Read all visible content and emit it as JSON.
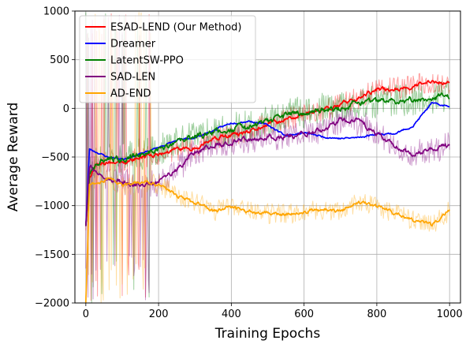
{
  "chart_data": {
    "type": "line",
    "title": "",
    "xlabel": "Training Epochs",
    "ylabel": "Average Reward",
    "xlim": [
      -30,
      1030
    ],
    "ylim": [
      -2000,
      1000
    ],
    "xticks": [
      0,
      200,
      400,
      600,
      800,
      1000
    ],
    "yticks": [
      -2000,
      -1500,
      -1000,
      -500,
      0,
      500,
      1000
    ],
    "xtick_labels": [
      "0",
      "200",
      "400",
      "600",
      "800",
      "1000"
    ],
    "ytick_labels": [
      "−2000",
      "−1500",
      "−1000",
      "−500",
      "0",
      "500",
      "1000"
    ],
    "grid": true,
    "legend_position": "top-left",
    "series": [
      {
        "name": "ESAD-LEND (Our Method)",
        "color": "#ff0000",
        "smooth_until": 1000,
        "raw_until": 1000,
        "x": [
          0,
          10,
          30,
          60,
          100,
          150,
          200,
          250,
          300,
          350,
          400,
          450,
          500,
          550,
          600,
          650,
          700,
          750,
          800,
          850,
          900,
          950,
          1000
        ],
        "values": [
          -1200,
          -700,
          -550,
          -560,
          -560,
          -500,
          -480,
          -420,
          -400,
          -320,
          -280,
          -250,
          -160,
          -120,
          -60,
          -20,
          40,
          110,
          190,
          200,
          230,
          270,
          260
        ],
        "noise": 90,
        "seed": 11
      },
      {
        "name": "Dreamer",
        "color": "#0000ff",
        "smooth_until": 1000,
        "raw_until": 0,
        "x": [
          0,
          10,
          30,
          60,
          100,
          150,
          200,
          250,
          300,
          350,
          400,
          450,
          500,
          550,
          600,
          650,
          700,
          750,
          800,
          850,
          900,
          950,
          1000
        ],
        "values": [
          -1200,
          -420,
          -450,
          -500,
          -520,
          -470,
          -400,
          -330,
          -300,
          -230,
          -150,
          -130,
          -170,
          -280,
          -250,
          -290,
          -310,
          -300,
          -260,
          -260,
          -180,
          50,
          20
        ],
        "noise": 40,
        "seed": 23
      },
      {
        "name": "LatentSW-PPO",
        "color": "#008000",
        "smooth_until": 1000,
        "raw_until": 1000,
        "x": [
          0,
          10,
          30,
          60,
          100,
          150,
          200,
          250,
          300,
          350,
          400,
          450,
          500,
          550,
          600,
          650,
          700,
          750,
          800,
          850,
          900,
          950,
          1000
        ],
        "values": [
          -1200,
          -650,
          -560,
          -520,
          -520,
          -470,
          -430,
          -360,
          -290,
          -240,
          -210,
          -180,
          -150,
          -70,
          -40,
          -10,
          -10,
          60,
          60,
          80,
          90,
          110,
          130
        ],
        "noise": 130,
        "seed": 37
      },
      {
        "name": "SAD-LEN",
        "color": "#800080",
        "smooth_until": 1000,
        "raw_until": 1000,
        "x": [
          0,
          10,
          30,
          60,
          100,
          150,
          200,
          250,
          300,
          350,
          400,
          450,
          500,
          550,
          600,
          650,
          700,
          750,
          800,
          850,
          900,
          950,
          1000
        ],
        "values": [
          -1200,
          -580,
          -640,
          -720,
          -760,
          -780,
          -760,
          -640,
          -450,
          -380,
          -340,
          -320,
          -300,
          -290,
          -260,
          -230,
          -120,
          -140,
          -260,
          -380,
          -480,
          -420,
          -380
        ],
        "noise": 110,
        "seed": 53
      },
      {
        "name": "AD-END",
        "color": "#ffa500",
        "smooth_until": 1000,
        "raw_until": 1000,
        "x": [
          0,
          10,
          30,
          60,
          100,
          150,
          200,
          250,
          300,
          350,
          400,
          450,
          500,
          550,
          600,
          650,
          700,
          750,
          800,
          850,
          900,
          950,
          1000
        ],
        "values": [
          -2000,
          -790,
          -760,
          -720,
          -800,
          -760,
          -780,
          -900,
          -960,
          -1060,
          -1000,
          -1060,
          -1080,
          -1090,
          -1060,
          -1040,
          -1060,
          -960,
          -1010,
          -1080,
          -1150,
          -1200,
          -1050
        ],
        "noise": 80,
        "seed": 71
      }
    ],
    "early_spikes": {
      "x_range": [
        0,
        180
      ],
      "max": 1000,
      "min": -2000
    }
  }
}
